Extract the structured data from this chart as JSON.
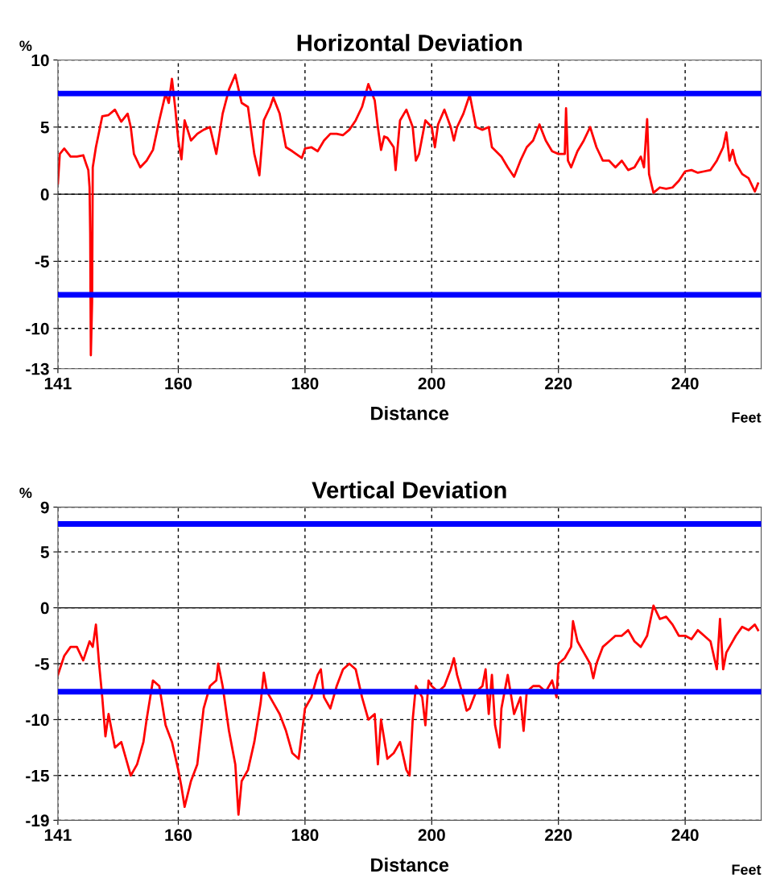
{
  "chart_data": [
    {
      "type": "line",
      "title": "Horizontal Deviation",
      "ylabel": "%",
      "xlabel": "Distance",
      "annotations": [
        "Feet"
      ],
      "xlim": [
        141,
        252
      ],
      "xticks": [
        141,
        160,
        180,
        200,
        220,
        240
      ],
      "ylim": [
        -13,
        10
      ],
      "yticks": [
        -13,
        -10,
        -5,
        0,
        5,
        10
      ],
      "grid": true,
      "line_style": "solid",
      "marker": "none",
      "ref_lines": [
        {
          "axis": "y",
          "value": 7.5,
          "color": "#0000ff",
          "line_style": "solid"
        },
        {
          "axis": "y",
          "value": -7.5,
          "color": "#0000ff",
          "line_style": "solid"
        },
        {
          "axis": "y",
          "value": 0,
          "color": "#000000",
          "line_style": "solid"
        }
      ],
      "series": [
        {
          "color": "#ff0000",
          "x": [
            141,
            141.3,
            142,
            143,
            144,
            145,
            145.5,
            145.8,
            146.0,
            146.1,
            146.2,
            146.4,
            146.5,
            147,
            148,
            149,
            150,
            151,
            152,
            152.5,
            153,
            154,
            155,
            156,
            157,
            158,
            158.5,
            159,
            159.5,
            160,
            160.5,
            161,
            162,
            163,
            164,
            165,
            166,
            167,
            168,
            169,
            170,
            171,
            172,
            172.8,
            173.5,
            174.5,
            175,
            176,
            177,
            178,
            179.5,
            180,
            181,
            182,
            183,
            184,
            185,
            186,
            187,
            188,
            189,
            190,
            191,
            191.5,
            192,
            192.5,
            193,
            194,
            194.3,
            195,
            196,
            197,
            197.5,
            198,
            199,
            200,
            200.5,
            201,
            202,
            203,
            203.5,
            204,
            205,
            206,
            207,
            208,
            209,
            209.5,
            211,
            212,
            213,
            214,
            215,
            216,
            217,
            218,
            219,
            220,
            221,
            221.2,
            221.5,
            222,
            223,
            224,
            225,
            226,
            227,
            228,
            229,
            230,
            231,
            232,
            233,
            233.5,
            234,
            234.3,
            235,
            236,
            237,
            238,
            239,
            240,
            241,
            242,
            243,
            244,
            245,
            246,
            246.5,
            247,
            247.5,
            248,
            249,
            250,
            251,
            251.5
          ],
          "values": [
            0.8,
            3.0,
            3.4,
            2.8,
            2.8,
            2.9,
            2.2,
            1.8,
            0.5,
            -3,
            -12.0,
            -8,
            2.0,
            3.5,
            5.8,
            5.9,
            6.3,
            5.4,
            6.0,
            5.0,
            3.0,
            2.0,
            2.5,
            3.3,
            5.5,
            7.5,
            6.8,
            8.6,
            6.5,
            4.0,
            2.6,
            5.5,
            4.0,
            4.5,
            4.8,
            5.0,
            3.0,
            6.0,
            7.8,
            8.9,
            6.8,
            6.5,
            3.0,
            1.4,
            5.5,
            6.5,
            7.2,
            6.0,
            3.5,
            3.2,
            2.7,
            3.4,
            3.5,
            3.2,
            4.0,
            4.5,
            4.5,
            4.4,
            4.8,
            5.5,
            6.5,
            8.2,
            7.0,
            5.0,
            3.3,
            4.3,
            4.2,
            3.5,
            1.8,
            5.5,
            6.3,
            5.0,
            2.5,
            3.0,
            5.5,
            5.0,
            3.5,
            5.2,
            6.3,
            5.0,
            4.0,
            5.0,
            6.0,
            7.4,
            5.0,
            4.8,
            5.0,
            3.5,
            2.8,
            2.0,
            1.3,
            2.5,
            3.5,
            4.0,
            5.2,
            4.0,
            3.2,
            3.0,
            3.0,
            6.4,
            2.5,
            2.0,
            3.2,
            4.0,
            5.0,
            3.5,
            2.5,
            2.5,
            2.0,
            2.5,
            1.8,
            2.0,
            2.8,
            2.0,
            5.6,
            1.5,
            0.1,
            0.5,
            0.4,
            0.5,
            1.0,
            1.7,
            1.8,
            1.6,
            1.7,
            1.8,
            2.5,
            3.5,
            4.6,
            2.5,
            3.3,
            2.3,
            1.5,
            1.2,
            0.2,
            0.8
          ]
        }
      ]
    },
    {
      "type": "line",
      "title": "Vertical Deviation",
      "ylabel": "%",
      "xlabel": "Distance",
      "annotations": [
        "Feet"
      ],
      "xlim": [
        141,
        252
      ],
      "xticks": [
        141,
        160,
        180,
        200,
        220,
        240
      ],
      "ylim": [
        -19,
        9
      ],
      "yticks": [
        -19,
        -15,
        -10,
        -5,
        0,
        5,
        9
      ],
      "grid": true,
      "line_style": "solid",
      "marker": "none",
      "ref_lines": [
        {
          "axis": "y",
          "value": 7.5,
          "color": "#0000ff",
          "line_style": "solid"
        },
        {
          "axis": "y",
          "value": -7.5,
          "color": "#0000ff",
          "line_style": "solid"
        },
        {
          "axis": "y",
          "value": 0,
          "color": "#000000",
          "line_style": "solid"
        }
      ],
      "series": [
        {
          "color": "#ff0000",
          "x": [
            141,
            142,
            143,
            144,
            145,
            146,
            146.5,
            147,
            147.5,
            148,
            148.5,
            149,
            150,
            151,
            152,
            152.5,
            153.5,
            154.5,
            155,
            156,
            157,
            158,
            159,
            160,
            160.5,
            161,
            162,
            163,
            164,
            165,
            166,
            166.3,
            167,
            168,
            169,
            169.5,
            170,
            171,
            172,
            173,
            173.5,
            174,
            175,
            176,
            177,
            178,
            179,
            180,
            181,
            182,
            182.5,
            183,
            184,
            185,
            186,
            187,
            188,
            189,
            190,
            191,
            191.5,
            192,
            193,
            194,
            195,
            196,
            196.5,
            197,
            197.5,
            198,
            198.5,
            199,
            199.5,
            200,
            201,
            202,
            203,
            203.5,
            204,
            205,
            205.5,
            206,
            207,
            208,
            208.5,
            209,
            209.5,
            210,
            210.7,
            211,
            212,
            213,
            214,
            214.5,
            215,
            216,
            217,
            218,
            219,
            219.7,
            220,
            221,
            222,
            222.3,
            223,
            224,
            225,
            225.5,
            226,
            227,
            228,
            229,
            230,
            231,
            232,
            233,
            234,
            235,
            236,
            237,
            238,
            239,
            240,
            241,
            242,
            243,
            244,
            245,
            245.5,
            246,
            246.5,
            247,
            248,
            249,
            250,
            251,
            251.5
          ],
          "values": [
            -6.0,
            -4.3,
            -3.5,
            -3.5,
            -4.7,
            -3.0,
            -3.5,
            -1.5,
            -5.0,
            -8.0,
            -11.5,
            -9.5,
            -12.5,
            -12.0,
            -14.0,
            -15.0,
            -14.0,
            -12.0,
            -10.0,
            -6.5,
            -7.0,
            -10.5,
            -12.0,
            -14.5,
            -16.0,
            -17.8,
            -15.5,
            -14.0,
            -9.0,
            -7.0,
            -6.5,
            -5.0,
            -7.0,
            -11.0,
            -14.0,
            -18.5,
            -15.5,
            -14.5,
            -12.0,
            -8.5,
            -5.8,
            -7.5,
            -8.5,
            -9.5,
            -11.0,
            -13.0,
            -13.5,
            -9.0,
            -8.0,
            -6.0,
            -5.5,
            -8.0,
            -9.0,
            -7.0,
            -5.5,
            -5.0,
            -5.5,
            -8.0,
            -10.0,
            -9.5,
            -14.0,
            -10.0,
            -13.5,
            -13.0,
            -12.0,
            -14.5,
            -15.0,
            -10.0,
            -7.0,
            -7.5,
            -8.0,
            -10.5,
            -6.5,
            -7.0,
            -7.5,
            -7.0,
            -5.5,
            -4.5,
            -6.0,
            -8.0,
            -9.2,
            -9.0,
            -7.5,
            -7.0,
            -5.5,
            -9.5,
            -6.0,
            -10.5,
            -12.5,
            -9.0,
            -6.0,
            -9.5,
            -8.0,
            -11.0,
            -7.5,
            -7.0,
            -7.0,
            -7.5,
            -6.5,
            -8.0,
            -5.0,
            -4.5,
            -3.5,
            -1.2,
            -3.0,
            -4.0,
            -5.0,
            -6.3,
            -5.0,
            -3.5,
            -3.0,
            -2.5,
            -2.5,
            -2.0,
            -3.0,
            -3.5,
            -2.5,
            0.2,
            -1.0,
            -0.8,
            -1.5,
            -2.5,
            -2.5,
            -2.8,
            -2.0,
            -2.5,
            -3.0,
            -5.5,
            -1.0,
            -5.5,
            -4.0,
            -3.5,
            -2.5,
            -1.7,
            -2.0,
            -1.5,
            -2.0
          ]
        }
      ]
    }
  ]
}
